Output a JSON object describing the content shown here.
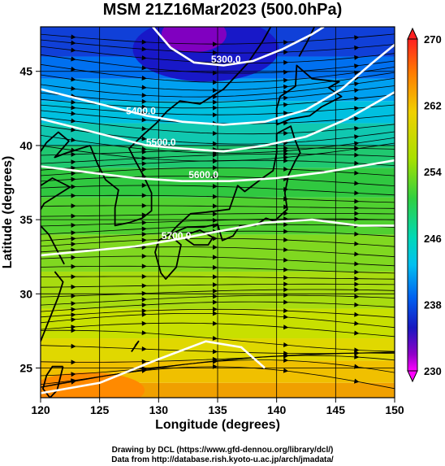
{
  "title": "MSM 21Z16Mar2023 (500.0hPa)",
  "map": {
    "xlabel": "Longitude (degrees)",
    "ylabel": "Latitude  (degrees)",
    "xlim": [
      120,
      150
    ],
    "ylim": [
      23,
      48
    ],
    "xticks": [
      "120",
      "125",
      "130",
      "135",
      "140",
      "145",
      "150"
    ],
    "yticks": [
      "25",
      "30",
      "35",
      "40",
      "45"
    ],
    "xtick_values": [
      120,
      125,
      130,
      135,
      140,
      145,
      150
    ],
    "ytick_values": [
      25,
      30,
      35,
      40,
      45
    ],
    "contour_labels": [
      {
        "text": "5300.0",
        "lon": 135.7,
        "lat": 45.6
      },
      {
        "text": "5400.0",
        "lon": 128.5,
        "lat": 42.1
      },
      {
        "text": "5500.0",
        "lon": 130.2,
        "lat": 40.0
      },
      {
        "text": "5600.0",
        "lon": 133.8,
        "lat": 37.8
      },
      {
        "text": "5700.0",
        "lon": 131.5,
        "lat": 33.7
      }
    ]
  },
  "colorbar": {
    "labels": [
      "270",
      "262",
      "254",
      "246",
      "238",
      "230"
    ],
    "values": [
      270,
      262,
      254,
      246,
      238,
      230
    ],
    "range": [
      230,
      270
    ],
    "colors": [
      "#ff0000",
      "#ff8800",
      "#e8d000",
      "#b8e000",
      "#40d040",
      "#00d8a0",
      "#00c8f0",
      "#0060f0",
      "#1010c8",
      "#9000c0",
      "#ff00ff"
    ]
  },
  "credits": [
    "Drawing by DCL (https://www.gfd-dennou.org/library/dcl/)",
    "Data from http://database.rish.kyoto-u.ac.jp/arch/jmadata/"
  ]
}
